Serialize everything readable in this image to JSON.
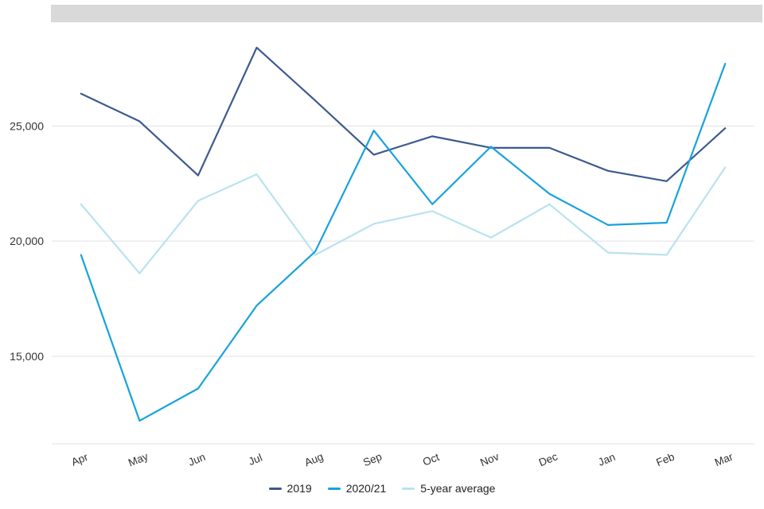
{
  "chart_data": {
    "type": "line",
    "title": "",
    "xlabel": "",
    "ylabel": "",
    "categories": [
      "Apr",
      "May",
      "Jun",
      "Jul",
      "Aug",
      "Sep",
      "Oct",
      "Nov",
      "Dec",
      "Jan",
      "Feb",
      "Mar"
    ],
    "yticks": [
      {
        "value": 15000,
        "label": "15,000"
      },
      {
        "value": 20000,
        "label": "20,000"
      },
      {
        "value": 25000,
        "label": "25,000"
      }
    ],
    "ylim": [
      11200,
      29500
    ],
    "grid": true,
    "legend_position": "bottom",
    "series": [
      {
        "name": "2019",
        "color": "#3d5a8f",
        "values": [
          26400,
          25200,
          22850,
          28400,
          26100,
          23750,
          24550,
          24050,
          24050,
          23050,
          22600,
          24900
        ]
      },
      {
        "name": "2020/21",
        "color": "#18a2dc",
        "values": [
          19400,
          12200,
          13600,
          17200,
          19550,
          24800,
          21600,
          24100,
          22050,
          20700,
          20800,
          27700
        ]
      },
      {
        "name": "5-year average",
        "color": "#b9e2f1",
        "values": [
          21600,
          18600,
          21750,
          22900,
          19400,
          20750,
          21300,
          20150,
          21600,
          19500,
          19400,
          23200
        ]
      }
    ]
  },
  "colors": {
    "grid": "#e0e0e0",
    "axis_label": "#333333",
    "top_bar": "#d9d9d9"
  }
}
